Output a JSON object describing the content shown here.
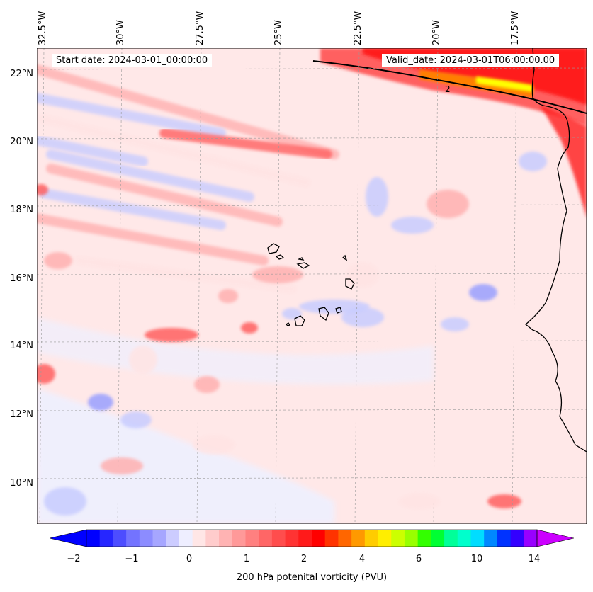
{
  "map": {
    "start_date_label": "Start date: 2024-03-01_00:00:00",
    "valid_date_label": "Valid_date: 2024-03-01T06:00:00.00",
    "contour_label": "2",
    "lon_labels": [
      "32.5°W",
      "30°W",
      "27.5°W",
      "25°W",
      "22.5°W",
      "20°W",
      "17.5°W"
    ],
    "lat_labels": [
      "22°N",
      "20°N",
      "18°N",
      "16°N",
      "14°N",
      "12°N",
      "10°N"
    ],
    "colors": {
      "positive_light": "#ffe4e4",
      "positive_mid": "#ffb0b0",
      "positive_strong": "#ff6060",
      "red": "#ff1a1a",
      "orange": "#ff7f00",
      "yellow": "#ffff00",
      "negative_light": "#eef0ff",
      "negative_mid": "#c8ccff",
      "negative_strong": "#9aa0ff",
      "coastline": "#000000"
    }
  },
  "colorbar": {
    "title": "200 hPa potenital vorticity (PVU)",
    "ticks": [
      "−2",
      "−1",
      "0",
      "1",
      "2",
      "4",
      "6",
      "10",
      "14"
    ],
    "colors": [
      "#0000ff",
      "#2626ff",
      "#4d4dff",
      "#7373ff",
      "#8c8cff",
      "#a6a6ff",
      "#ccccff",
      "#eeeeff",
      "#ffe6e6",
      "#ffcccc",
      "#ffb3b3",
      "#ff9999",
      "#ff8080",
      "#ff6666",
      "#ff4d4d",
      "#ff3333",
      "#ff1a1a",
      "#ff0000",
      "#ff3300",
      "#ff6600",
      "#ff9900",
      "#ffcc00",
      "#ffee00",
      "#ccff00",
      "#99ff00",
      "#33ff00",
      "#00ff33",
      "#00ff99",
      "#00ffcc",
      "#00ddff",
      "#0088ff",
      "#0033ff",
      "#3300ff",
      "#9900ff"
    ]
  }
}
